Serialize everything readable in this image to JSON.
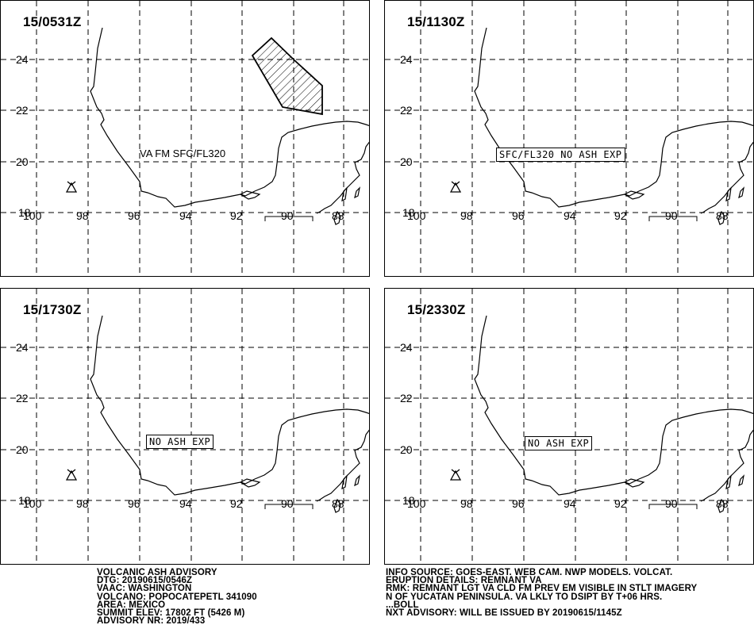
{
  "panels": [
    {
      "time": "15/0531Z",
      "label": "VA FM SFC/FL320",
      "label_style": "plain",
      "ash_cloud": true
    },
    {
      "time": "15/1130Z",
      "label": "SFC/FL320 NO ASH EXP",
      "label_style": "boxed",
      "ash_cloud": false
    },
    {
      "time": "15/1730Z",
      "label": "NO ASH EXP",
      "label_style": "boxed",
      "ash_cloud": false
    },
    {
      "time": "15/2330Z",
      "label": "NO ASH EXP",
      "label_style": "boxed",
      "ash_cloud": false
    }
  ],
  "lat_labels": [
    "24",
    "22",
    "20",
    "18"
  ],
  "lon_labels": [
    "100",
    "98",
    "96",
    "94",
    "92",
    "90",
    "88"
  ],
  "advisory_left": [
    "VOLCANIC ASH ADVISORY",
    "DTG: 20190615/0546Z",
    "VAAC: WASHINGTON",
    "VOLCANO: POPOCATEPETL 341090",
    "AREA: MEXICO",
    "SUMMIT ELEV: 17802 FT (5426 M)",
    "ADVISORY NR: 2019/433"
  ],
  "advisory_right": [
    "INFO SOURCE: GOES-EAST. WEB CAM. NWP MODELS. VOLCAT.",
    "ERUPTION DETAILS: REMNANT VA",
    "RMK: REMNANT LGT VA CLD FM PREV EM VISIBLE IN STLT IMAGERY",
    "N OF YUCATAN PENINSULA. VA LKLY TO DSIPT BY T+06 HRS.",
    "...BOLL",
    "NXT ADVISORY: WILL BE ISSUED BY 20190615/1145Z"
  ]
}
